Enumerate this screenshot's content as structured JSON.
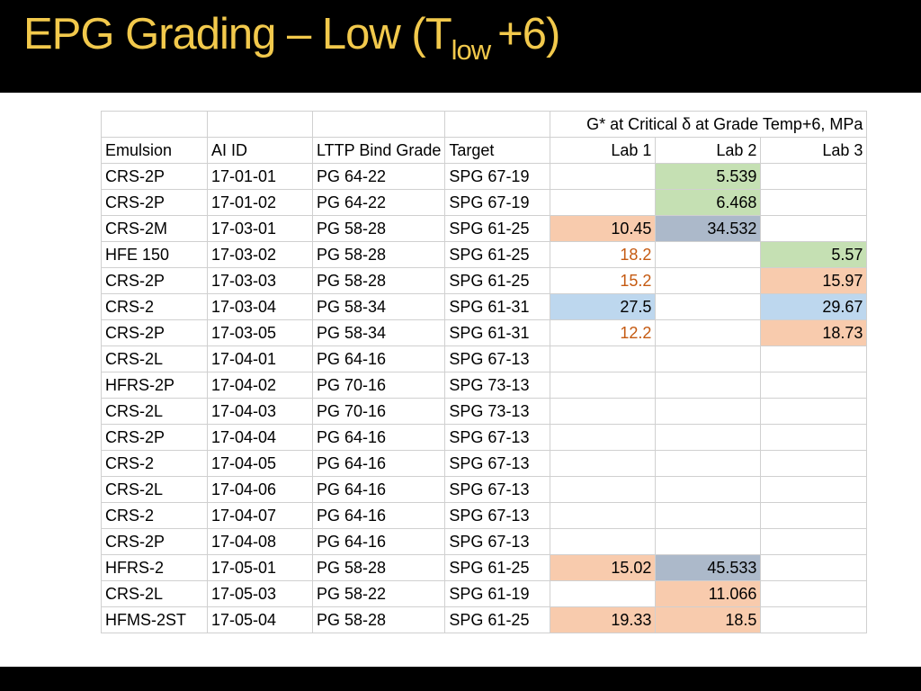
{
  "title": {
    "main": "EPG Grading – Low (T",
    "sub": "low",
    "suffix": "+6)"
  },
  "colors": {
    "title_text": "#f2c94c",
    "green": "#c5e0b3",
    "orange": "#f8cbad",
    "grey": "#acb9ca",
    "blue": "#bdd7ee",
    "orange_text": "#c55a11"
  },
  "table": {
    "span_header": "G* at Critical δ at Grade Temp+6,  MPa",
    "headers": [
      "Emulsion",
      "AI ID",
      "LTTP Bind Grade",
      "Target",
      "Lab 1",
      "Lab 2",
      "Lab 3"
    ],
    "rows": [
      {
        "emulsion": "CRS-2P",
        "ai_id": "17-01-01",
        "lttp": "PG 64-22",
        "target": "SPG 67-19",
        "lab1": "",
        "lab2": "5.539",
        "lab3": "",
        "lab1_style": "",
        "lab2_style": "green",
        "lab3_style": ""
      },
      {
        "emulsion": "CRS-2P",
        "ai_id": "17-01-02",
        "lttp": "PG 64-22",
        "target": "SPG 67-19",
        "lab1": "",
        "lab2": "6.468",
        "lab3": "",
        "lab1_style": "",
        "lab2_style": "green",
        "lab3_style": ""
      },
      {
        "emulsion": "CRS-2M",
        "ai_id": "17-03-01",
        "lttp": "PG 58-28",
        "target": "SPG 61-25",
        "lab1": "10.45",
        "lab2": "34.532",
        "lab3": "",
        "lab1_style": "orange",
        "lab2_style": "grey",
        "lab3_style": ""
      },
      {
        "emulsion": "HFE 150",
        "ai_id": "17-03-02",
        "lttp": "PG 58-28",
        "target": "SPG 61-25",
        "lab1": "18.2",
        "lab2": "",
        "lab3": "5.57",
        "lab1_style": "orange-text",
        "lab2_style": "",
        "lab3_style": "green"
      },
      {
        "emulsion": "CRS-2P",
        "ai_id": "17-03-03",
        "lttp": "PG 58-28",
        "target": "SPG 61-25",
        "lab1": "15.2",
        "lab2": "",
        "lab3": "15.97",
        "lab1_style": "orange-text",
        "lab2_style": "",
        "lab3_style": "orange"
      },
      {
        "emulsion": "CRS-2",
        "ai_id": "17-03-04",
        "lttp": "PG 58-34",
        "target": "SPG 61-31",
        "lab1": "27.5",
        "lab2": "",
        "lab3": "29.67",
        "lab1_style": "blue",
        "lab2_style": "",
        "lab3_style": "blue"
      },
      {
        "emulsion": "CRS-2P",
        "ai_id": "17-03-05",
        "lttp": "PG 58-34",
        "target": "SPG 61-31",
        "lab1": "12.2",
        "lab2": "",
        "lab3": "18.73",
        "lab1_style": "orange-text",
        "lab2_style": "",
        "lab3_style": "orange"
      },
      {
        "emulsion": "CRS-2L",
        "ai_id": "17-04-01",
        "lttp": "PG 64-16",
        "target": "SPG 67-13",
        "lab1": "",
        "lab2": "",
        "lab3": "",
        "lab1_style": "",
        "lab2_style": "",
        "lab3_style": ""
      },
      {
        "emulsion": "HFRS-2P",
        "ai_id": "17-04-02",
        "lttp": "PG 70-16",
        "target": "SPG 73-13",
        "lab1": "",
        "lab2": "",
        "lab3": "",
        "lab1_style": "",
        "lab2_style": "",
        "lab3_style": ""
      },
      {
        "emulsion": "CRS-2L",
        "ai_id": "17-04-03",
        "lttp": "PG 70-16",
        "target": "SPG 73-13",
        "lab1": "",
        "lab2": "",
        "lab3": "",
        "lab1_style": "",
        "lab2_style": "",
        "lab3_style": ""
      },
      {
        "emulsion": "CRS-2P",
        "ai_id": "17-04-04",
        "lttp": "PG 64-16",
        "target": "SPG 67-13",
        "lab1": "",
        "lab2": "",
        "lab3": "",
        "lab1_style": "",
        "lab2_style": "",
        "lab3_style": ""
      },
      {
        "emulsion": "CRS-2",
        "ai_id": "17-04-05",
        "lttp": "PG 64-16",
        "target": "SPG 67-13",
        "lab1": "",
        "lab2": "",
        "lab3": "",
        "lab1_style": "",
        "lab2_style": "",
        "lab3_style": ""
      },
      {
        "emulsion": "CRS-2L",
        "ai_id": "17-04-06",
        "lttp": "PG 64-16",
        "target": "SPG 67-13",
        "lab1": "",
        "lab2": "",
        "lab3": "",
        "lab1_style": "",
        "lab2_style": "",
        "lab3_style": ""
      },
      {
        "emulsion": "CRS-2",
        "ai_id": "17-04-07",
        "lttp": "PG 64-16",
        "target": "SPG 67-13",
        "lab1": "",
        "lab2": "",
        "lab3": "",
        "lab1_style": "",
        "lab2_style": "",
        "lab3_style": ""
      },
      {
        "emulsion": "CRS-2P",
        "ai_id": "17-04-08",
        "lttp": "PG 64-16",
        "target": "SPG 67-13",
        "lab1": "",
        "lab2": "",
        "lab3": "",
        "lab1_style": "",
        "lab2_style": "",
        "lab3_style": ""
      },
      {
        "emulsion": "HFRS-2",
        "ai_id": "17-05-01",
        "lttp": "PG 58-28",
        "target": "SPG 61-25",
        "lab1": "15.02",
        "lab2": "45.533",
        "lab3": "",
        "lab1_style": "orange",
        "lab2_style": "grey",
        "lab3_style": ""
      },
      {
        "emulsion": "CRS-2L",
        "ai_id": "17-05-03",
        "lttp": "PG 58-22",
        "target": "SPG 61-19",
        "lab1": "",
        "lab2": "11.066",
        "lab3": "",
        "lab1_style": "",
        "lab2_style": "orange",
        "lab3_style": ""
      },
      {
        "emulsion": "HFMS-2ST",
        "ai_id": "17-05-04",
        "lttp": "PG 58-28",
        "target": "SPG 61-25",
        "lab1": "19.33",
        "lab2": "18.5",
        "lab3": "",
        "lab1_style": "orange",
        "lab2_style": "orange",
        "lab3_style": ""
      }
    ]
  }
}
